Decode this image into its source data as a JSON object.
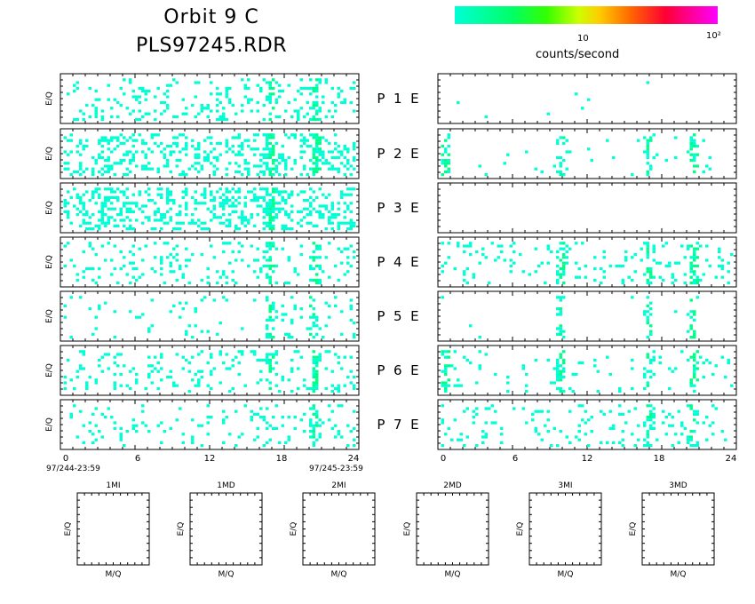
{
  "title": {
    "line1": "Orbit  9  C",
    "line2": "PLS97245.RDR"
  },
  "colorbar": {
    "ticks": [
      {
        "label": "10",
        "frac": 0.5
      },
      {
        "label": "10²",
        "frac": 0.98
      }
    ],
    "label": "counts/second",
    "colors": [
      "#00ffd5",
      "#00ff66",
      "#33ff00",
      "#ccff00",
      "#ffcc00",
      "#ff6600",
      "#ff0033",
      "#ff00ff"
    ]
  },
  "ylabel_panel": "E/Q",
  "row_labels": [
    "P  1  E",
    "P  2  E",
    "P  3  E",
    "P  4  E",
    "P  5  E",
    "P  6  E",
    "P  7  E"
  ],
  "x_ticks": [
    "0",
    "6",
    "12",
    "18",
    "24"
  ],
  "time_start": "97/244-23:59",
  "time_end": "97/245-23:59",
  "bottom_panels": [
    {
      "title": "1MI",
      "xlabel": "M/Q",
      "ylabel": "E/Q"
    },
    {
      "title": "1MD",
      "xlabel": "M/Q",
      "ylabel": "E/Q"
    },
    {
      "title": "2MI",
      "xlabel": "M/Q",
      "ylabel": "E/Q"
    },
    {
      "title": "2MD",
      "xlabel": "M/Q",
      "ylabel": "E/Q"
    },
    {
      "title": "3MI",
      "xlabel": "M/Q",
      "ylabel": "E/Q"
    },
    {
      "title": "3MD",
      "xlabel": "M/Q",
      "ylabel": "E/Q"
    }
  ],
  "chart_data": {
    "type": "heatmap",
    "x_unit": "hours",
    "xlim": [
      0,
      24
    ],
    "color_scale": "log",
    "color_range": [
      1,
      100
    ],
    "panels": [
      {
        "row": "P 1",
        "side": "left",
        "density": 0.14,
        "hot_hours": [
          16.8,
          20.3
        ]
      },
      {
        "row": "P 1",
        "side": "right",
        "density": 0.004,
        "hot_hours": []
      },
      {
        "row": "P 2",
        "side": "left",
        "density": 0.26,
        "hot_hours": [
          16.8,
          20.5
        ]
      },
      {
        "row": "P 2",
        "side": "right",
        "density": 0.02,
        "hot_hours": [
          0.5,
          9.8,
          16.8,
          20.5
        ]
      },
      {
        "row": "P 3",
        "side": "left",
        "density": 0.3,
        "hot_hours": [
          16.8
        ]
      },
      {
        "row": "P 3",
        "side": "right",
        "density": 0.0,
        "hot_hours": []
      },
      {
        "row": "P 4",
        "side": "left",
        "density": 0.12,
        "hot_hours": [
          16.8,
          20.4
        ]
      },
      {
        "row": "P 4",
        "side": "right",
        "density": 0.1,
        "hot_hours": [
          9.8,
          16.8,
          20.5
        ]
      },
      {
        "row": "P 5",
        "side": "left",
        "density": 0.05,
        "hot_hours": [
          16.8,
          20.2
        ]
      },
      {
        "row": "P 5",
        "side": "right",
        "density": 0.005,
        "hot_hours": [
          9.8,
          16.8,
          20.3
        ]
      },
      {
        "row": "P 6",
        "side": "left",
        "density": 0.14,
        "hot_hours": [
          16.8,
          20.4
        ]
      },
      {
        "row": "P 6",
        "side": "right",
        "density": 0.05,
        "hot_hours": [
          0.5,
          9.8,
          16.8,
          20.5
        ]
      },
      {
        "row": "P 7",
        "side": "left",
        "density": 0.1,
        "hot_hours": [
          20.3
        ]
      },
      {
        "row": "P 7",
        "side": "right",
        "density": 0.08,
        "hot_hours": [
          16.8,
          20.3
        ]
      }
    ]
  }
}
